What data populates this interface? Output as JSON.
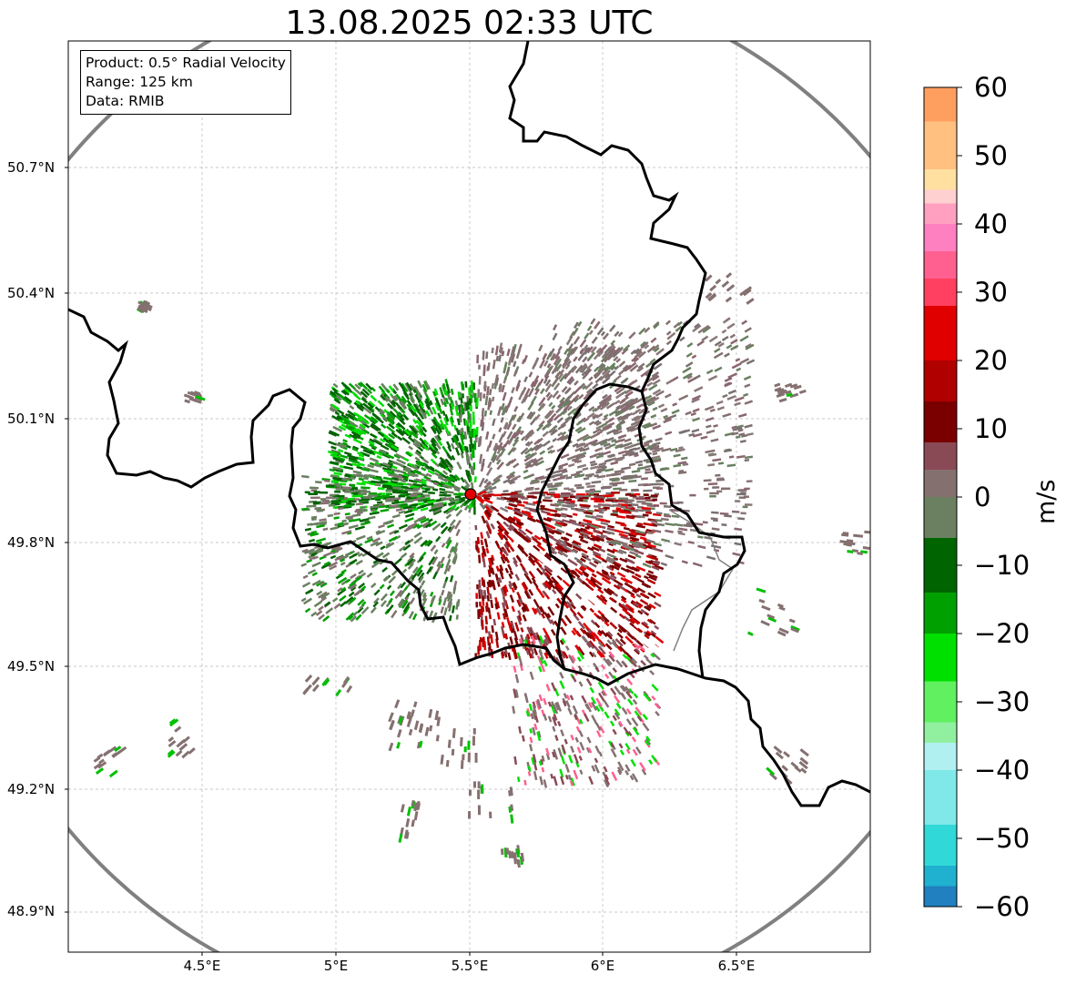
{
  "title": "13.08.2025 02:33 UTC",
  "info": {
    "product": "Product: 0.5° Radial Velocity",
    "range": "Range: 125 km",
    "data": "Data: RMIB"
  },
  "map": {
    "lat_ticks": [
      "50.7°N",
      "50.4°N",
      "50.1°N",
      "49.8°N",
      "49.5°N",
      "49.2°N",
      "48.9°N"
    ],
    "lon_ticks": [
      "4.5°E",
      "5°E",
      "5.5°E",
      "6°E",
      "6.5°E"
    ],
    "radar_site": {
      "lat": 49.91,
      "lon": 5.51,
      "marker_color": "#e00000"
    },
    "range_ring_color": "#808080",
    "border_color": "#000000"
  },
  "colorbar": {
    "unit": "m/s",
    "ticks": [
      "60",
      "50",
      "40",
      "30",
      "20",
      "10",
      "0",
      "−10",
      "−20",
      "−30",
      "−40",
      "−50",
      "−60"
    ],
    "min": -60,
    "max": 60,
    "colors": [
      {
        "from": 55,
        "to": 60,
        "color": "#ff9f5f"
      },
      {
        "from": 48,
        "to": 55,
        "color": "#ffc080"
      },
      {
        "from": 45,
        "to": 48,
        "color": "#ffe0a0"
      },
      {
        "from": 43,
        "to": 45,
        "color": "#ffd0d0"
      },
      {
        "from": 40,
        "to": 43,
        "color": "#ffa0c0"
      },
      {
        "from": 36,
        "to": 40,
        "color": "#ff80c0"
      },
      {
        "from": 32,
        "to": 36,
        "color": "#ff6090"
      },
      {
        "from": 28,
        "to": 32,
        "color": "#ff4060"
      },
      {
        "from": 20,
        "to": 28,
        "color": "#e00000"
      },
      {
        "from": 14,
        "to": 20,
        "color": "#b00000"
      },
      {
        "from": 8,
        "to": 14,
        "color": "#7a0000"
      },
      {
        "from": 4,
        "to": 8,
        "color": "#8a4a55"
      },
      {
        "from": 0,
        "to": 4,
        "color": "#857070"
      },
      {
        "from": -6,
        "to": 0,
        "color": "#6a8060"
      },
      {
        "from": -14,
        "to": -6,
        "color": "#006400"
      },
      {
        "from": -20,
        "to": -14,
        "color": "#00a000"
      },
      {
        "from": -27,
        "to": -20,
        "color": "#00e000"
      },
      {
        "from": -33,
        "to": -27,
        "color": "#60f060"
      },
      {
        "from": -36,
        "to": -33,
        "color": "#90f0a0"
      },
      {
        "from": -40,
        "to": -36,
        "color": "#b0f0f0"
      },
      {
        "from": -48,
        "to": -40,
        "color": "#80e8e8"
      },
      {
        "from": -54,
        "to": -48,
        "color": "#30d8d8"
      },
      {
        "from": -57,
        "to": -54,
        "color": "#20b0d0"
      },
      {
        "from": -60,
        "to": -57,
        "color": "#2080c0"
      }
    ]
  }
}
